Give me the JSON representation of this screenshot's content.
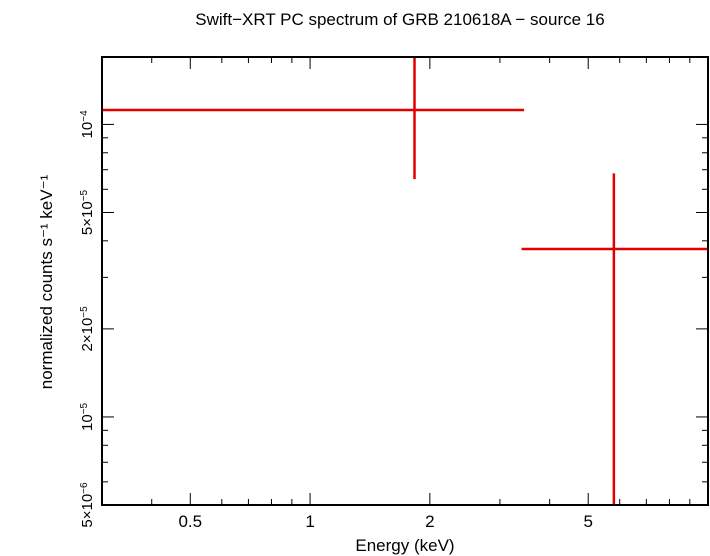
{
  "chart_data": {
    "type": "scatter",
    "title": "Swift−XRT PC spectrum of GRB 210618A − source 16",
    "xlabel": "Energy (keV)",
    "ylabel": "normalized counts s⁻¹ keV⁻¹",
    "x_scale": "log",
    "y_scale": "log",
    "xlim": [
      0.3,
      10
    ],
    "ylim": [
      5e-06,
      0.00017
    ],
    "x_ticks": [
      {
        "value": 0.5,
        "label": "0.5"
      },
      {
        "value": 1,
        "label": "1"
      },
      {
        "value": 2,
        "label": "2"
      },
      {
        "value": 5,
        "label": "5"
      }
    ],
    "y_ticks": [
      {
        "value": 5e-06,
        "mant": "5×10",
        "exp": "−6"
      },
      {
        "value": 1e-05,
        "mant": "10",
        "exp": "−5"
      },
      {
        "value": 2e-05,
        "mant": "2×10",
        "exp": "−5"
      },
      {
        "value": 5e-05,
        "mant": "5×10",
        "exp": "−5"
      },
      {
        "value": 0.0001,
        "mant": "10",
        "exp": "−4"
      }
    ],
    "series": [
      {
        "color": "#e00000",
        "points": [
          {
            "x": 1.83,
            "xlo": 0.3,
            "xhi": 3.45,
            "y": 0.000112,
            "ylo": 6.5e-05,
            "yhi": 0.00017
          },
          {
            "x": 5.8,
            "xlo": 3.4,
            "xhi": 10,
            "y": 3.75e-05,
            "ylo": 5e-06,
            "yhi": 6.8e-05
          }
        ]
      }
    ],
    "grid": false,
    "legend": "none"
  }
}
